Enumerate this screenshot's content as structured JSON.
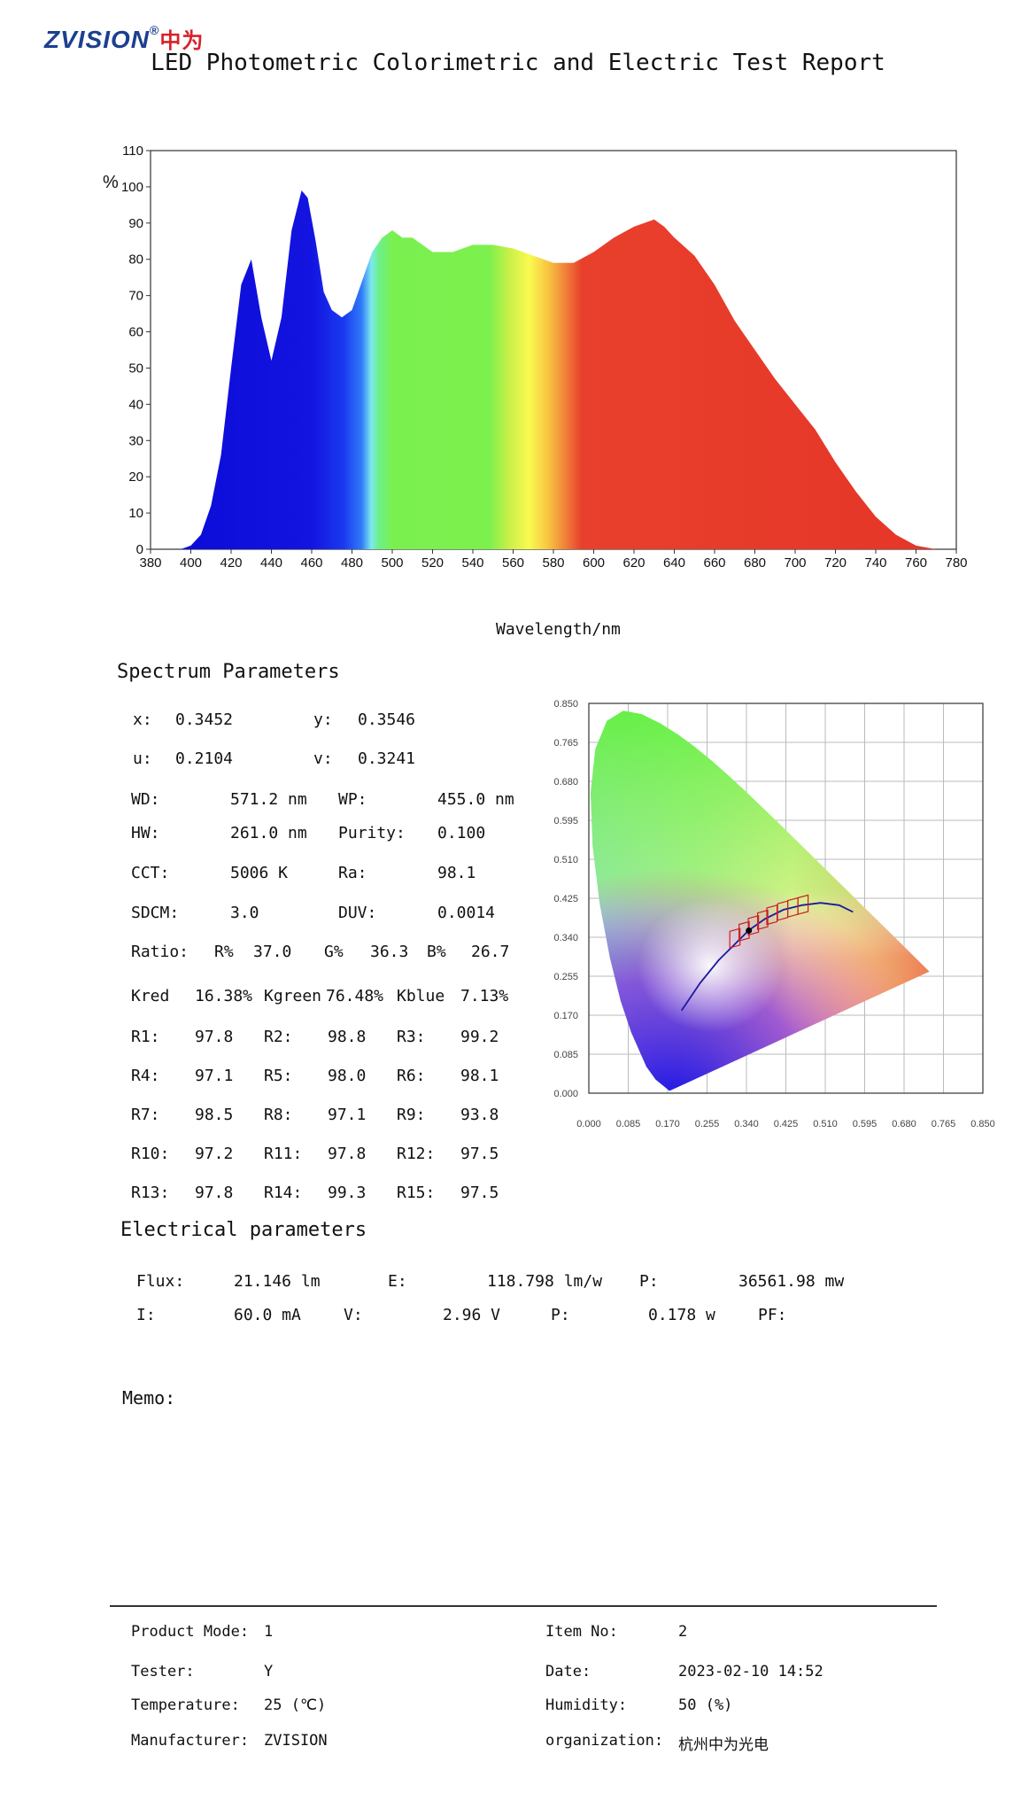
{
  "header": {
    "logo_text": "ZVISION",
    "logo_cn": "中为",
    "title": "LED Photometric Colorimetric and Electric Test Report"
  },
  "chart_data": {
    "type": "area",
    "ylabel": "%",
    "xlabel": "Wavelength/nm",
    "xlim": [
      380,
      780
    ],
    "ylim": [
      0,
      110
    ],
    "x_ticks": [
      380,
      400,
      420,
      440,
      460,
      480,
      500,
      520,
      540,
      560,
      580,
      600,
      620,
      640,
      660,
      680,
      700,
      720,
      740,
      760,
      780
    ],
    "y_ticks": [
      0,
      10,
      20,
      30,
      40,
      50,
      60,
      70,
      80,
      90,
      100,
      110
    ],
    "grid": false,
    "fill": "wavelength-colored spectrum",
    "x": [
      380,
      395,
      400,
      405,
      410,
      415,
      420,
      425,
      430,
      435,
      440,
      445,
      450,
      455,
      458,
      462,
      466,
      470,
      475,
      480,
      485,
      490,
      495,
      500,
      505,
      510,
      515,
      520,
      530,
      540,
      550,
      560,
      570,
      580,
      590,
      600,
      610,
      620,
      630,
      635,
      640,
      650,
      660,
      670,
      680,
      690,
      700,
      710,
      720,
      730,
      740,
      750,
      760,
      765,
      770,
      775,
      780
    ],
    "y": [
      0,
      0,
      1,
      4,
      12,
      26,
      50,
      73,
      80,
      64,
      52,
      64,
      88,
      99,
      97,
      85,
      71,
      66,
      64,
      66,
      74,
      82,
      86,
      88,
      86,
      86,
      84,
      82,
      82,
      84,
      84,
      83,
      81,
      79,
      79,
      82,
      86,
      89,
      91,
      89,
      86,
      81,
      73,
      63,
      55,
      47,
      40,
      33,
      24,
      16,
      9,
      4,
      1,
      0.5,
      0,
      0,
      0
    ]
  },
  "spectrum": {
    "heading": "Spectrum Parameters",
    "rows": [
      [
        {
          "l": "x:",
          "v": "0.3452"
        },
        {
          "l": "y:",
          "v": "0.3546"
        }
      ],
      [
        {
          "l": "u:",
          "v": "0.2104"
        },
        {
          "l": "v:",
          "v": "0.3241"
        }
      ],
      [
        {
          "l": "WD:",
          "v": "571.2 nm"
        },
        {
          "l": "WP:",
          "v": "455.0 nm"
        }
      ],
      [
        {
          "l": "HW:",
          "v": "261.0 nm"
        },
        {
          "l": "Purity:",
          "v": "0.100"
        }
      ],
      [
        {
          "l": "CCT:",
          "v": "5006 K"
        },
        {
          "l": "Ra:",
          "v": "98.1"
        }
      ],
      [
        {
          "l": "SDCM:",
          "v": "3.0"
        },
        {
          "l": "DUV:",
          "v": "0.0014"
        }
      ]
    ],
    "ratio": {
      "label": "Ratio:",
      "r_l": "R%",
      "r_v": "37.0",
      "g_l": "G%",
      "g_v": "36.3",
      "b_l": "B%",
      "b_v": "26.7"
    },
    "k": {
      "red_l": "Kred",
      "red_v": "16.38%",
      "green_l": "Kgreen",
      "green_v": "76.48%",
      "blue_l": "Kblue",
      "blue_v": "7.13%"
    },
    "r_values": [
      [
        {
          "l": "R1:",
          "v": "97.8"
        },
        {
          "l": "R2:",
          "v": "98.8"
        },
        {
          "l": "R3:",
          "v": "99.2"
        }
      ],
      [
        {
          "l": "R4:",
          "v": "97.1"
        },
        {
          "l": "R5:",
          "v": "98.0"
        },
        {
          "l": "R6:",
          "v": "98.1"
        }
      ],
      [
        {
          "l": "R7:",
          "v": "98.5"
        },
        {
          "l": "R8:",
          "v": "97.1"
        },
        {
          "l": "R9:",
          "v": "93.8"
        }
      ],
      [
        {
          "l": "R10:",
          "v": "97.2"
        },
        {
          "l": "R11:",
          "v": "97.8"
        },
        {
          "l": "R12:",
          "v": "97.5"
        }
      ],
      [
        {
          "l": "R13:",
          "v": "97.8"
        },
        {
          "l": "R14:",
          "v": "99.3"
        },
        {
          "l": "R15:",
          "v": "97.5"
        }
      ]
    ]
  },
  "cie": {
    "x_ticks": [
      "0.000",
      "0.085",
      "0.170",
      "0.255",
      "0.340",
      "0.425",
      "0.510",
      "0.595",
      "0.680",
      "0.765",
      "0.850"
    ],
    "y_ticks": [
      "0.850",
      "0.765",
      "0.680",
      "0.595",
      "0.510",
      "0.425",
      "0.340",
      "0.255",
      "0.170",
      "0.085",
      "0.000"
    ],
    "point": {
      "x": 0.3452,
      "y": 0.3546
    }
  },
  "electrical": {
    "heading": "Electrical parameters",
    "row1": [
      {
        "l": "Flux:",
        "v": "21.146 lm"
      },
      {
        "l": "E:",
        "v": "118.798 lm/w"
      },
      {
        "l": "P:",
        "v": "36561.98 mw"
      }
    ],
    "row2": [
      {
        "l": "I:",
        "v": "60.0 mA"
      },
      {
        "l": "V:",
        "v": "2.96 V"
      },
      {
        "l": "P:",
        "v": "0.178 w"
      },
      {
        "l": "PF:",
        "v": ""
      }
    ]
  },
  "memo": {
    "label": "Memo:"
  },
  "footer": {
    "rows": [
      {
        "l1": "Product Mode:",
        "v1": "1",
        "l2": "Item No:",
        "v2": "2"
      },
      {
        "l1": "Tester:",
        "v1": "Y",
        "l2": "Date:",
        "v2": "2023-02-10 14:52"
      },
      {
        "l1": "Temperature:",
        "v1": "25 (℃)",
        "l2": "Humidity:",
        "v2": "50 (%)"
      },
      {
        "l1": "Manufacturer:",
        "v1": "ZVISION",
        "l2": "organization:",
        "v2": "杭州中为光电"
      }
    ]
  }
}
